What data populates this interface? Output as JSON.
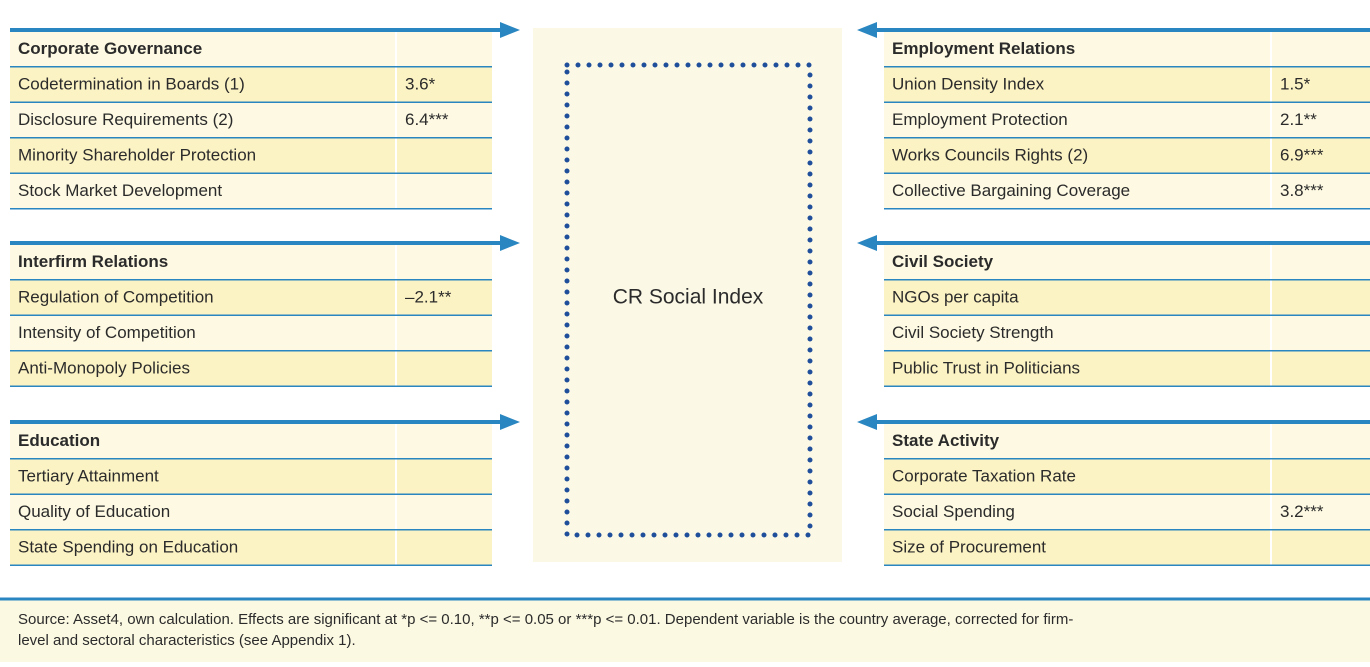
{
  "center": {
    "label": "CR Social Index"
  },
  "left": [
    {
      "title": "Corporate Governance",
      "rows": [
        {
          "label": "Codetermination in Boards (1)",
          "value": "3.6*"
        },
        {
          "label": "Disclosure Requirements (2)",
          "value": "6.4***"
        },
        {
          "label": "Minority Shareholder Protection"
        },
        {
          "label": "Stock Market Development"
        }
      ]
    },
    {
      "title": "Interfirm Relations",
      "rows": [
        {
          "label": "Regulation of Competition",
          "value": "–2.1**"
        },
        {
          "label": "Intensity of Competition"
        },
        {
          "label": "Anti-Monopoly Policies"
        }
      ]
    },
    {
      "title": "Education",
      "rows": [
        {
          "label": "Tertiary Attainment"
        },
        {
          "label": "Quality of Education"
        },
        {
          "label": "State Spending on Education"
        }
      ]
    }
  ],
  "right": [
    {
      "title": "Employment Relations",
      "rows": [
        {
          "label": "Union Density Index",
          "value": "1.5*"
        },
        {
          "label": "Employment Protection",
          "value": "2.1**"
        },
        {
          "label": "Works Councils Rights (2)",
          "value": "6.9***"
        },
        {
          "label": "Collective Bargaining Coverage",
          "value": "3.8***"
        }
      ]
    },
    {
      "title": "Civil Society",
      "rows": [
        {
          "label": "NGOs per capita"
        },
        {
          "label": "Civil Society Strength"
        },
        {
          "label": "Public Trust in Politicians"
        }
      ]
    },
    {
      "title": "State Activity",
      "rows": [
        {
          "label": "Corporate Taxation Rate"
        },
        {
          "label": "Social Spending",
          "value": "3.2***"
        },
        {
          "label": "Size of Procurement"
        }
      ]
    }
  ],
  "footer": {
    "lines": [
      "Source: Asset4, own calculation. Effects are significant at *p <= 0.10, **p <= 0.05 or ***p <= 0.01. Dependent variable is the country average, corrected for firm-",
      "level and sectoral characteristics (see Appendix 1)."
    ]
  }
}
